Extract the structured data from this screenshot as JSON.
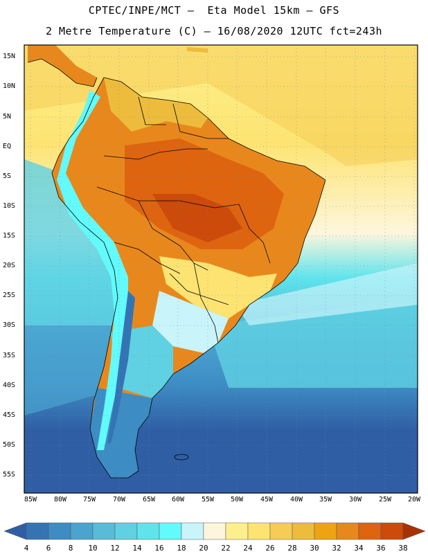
{
  "header": {
    "line1": "CPTEC/INPE/MCT –  Eta Model 15km – GFS",
    "line2": "2 Metre Temperature (C) – 16/08/2020 12UTC fct=243h"
  },
  "map": {
    "region": "South America",
    "lon_range": [
      -85,
      -20
    ],
    "lat_range": [
      -58,
      17
    ],
    "lat_ticks": [
      "15N",
      "10N",
      "5N",
      "EQ",
      "5S",
      "10S",
      "15S",
      "20S",
      "25S",
      "30S",
      "35S",
      "40S",
      "45S",
      "50S",
      "55S"
    ],
    "lon_ticks": [
      "85W",
      "80W",
      "75W",
      "70W",
      "65W",
      "60W",
      "55W",
      "50W",
      "45W",
      "40W",
      "35W",
      "30W",
      "25W",
      "20W"
    ]
  },
  "colorbar": {
    "labels": [
      "4",
      "6",
      "8",
      "10",
      "12",
      "14",
      "16",
      "18",
      "20",
      "22",
      "24",
      "26",
      "28",
      "30",
      "32",
      "34",
      "36",
      "38"
    ],
    "colors": [
      "#2f5ea4",
      "#3574b4",
      "#3d8cc4",
      "#4aa4d0",
      "#58bcd8",
      "#5fd1e2",
      "#5fe4ec",
      "#62fafa",
      "#c8f4fa",
      "#fdf6dc",
      "#fdf08c",
      "#fde472",
      "#f6cc56",
      "#edbc3c",
      "#eea412",
      "#e8881c",
      "#de6410",
      "#cc4a0a",
      "#a83206"
    ]
  }
}
